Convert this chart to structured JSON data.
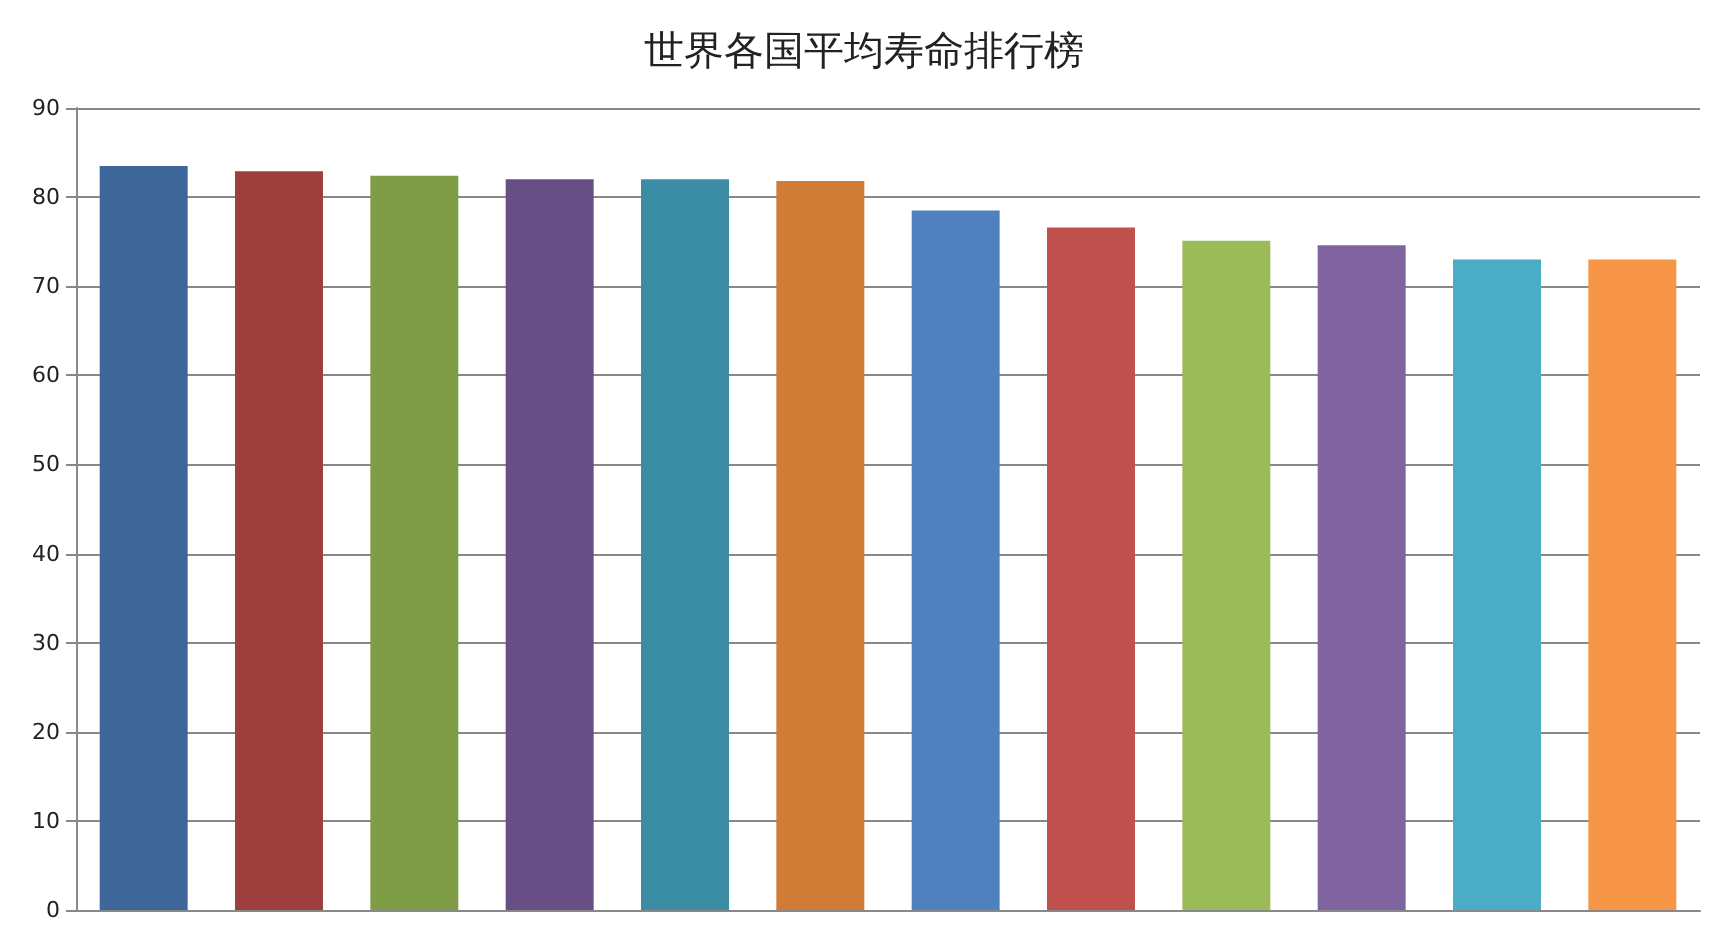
{
  "chart_data": {
    "type": "bar",
    "title": "世界各国平均寿命排行榜",
    "categories": [
      null,
      null,
      null,
      null,
      null,
      null,
      null,
      null,
      null,
      null,
      null,
      null
    ],
    "values": [
      83.5,
      82.9,
      82.4,
      82.0,
      82.0,
      81.8,
      78.5,
      76.6,
      75.1,
      74.6,
      73.0,
      73.0
    ],
    "colors": [
      "#3f6699",
      "#9e3f3d",
      "#7f9c47",
      "#674f85",
      "#3a8da5",
      "#d07c36",
      "#4e81bd",
      "#c0504d",
      "#9bbb59",
      "#8064a2",
      "#4bacc6",
      "#f79646"
    ],
    "ylim": [
      0,
      90
    ],
    "yticks": [
      0,
      10,
      20,
      30,
      40,
      50,
      60,
      70,
      80,
      90
    ],
    "grid": "y"
  }
}
